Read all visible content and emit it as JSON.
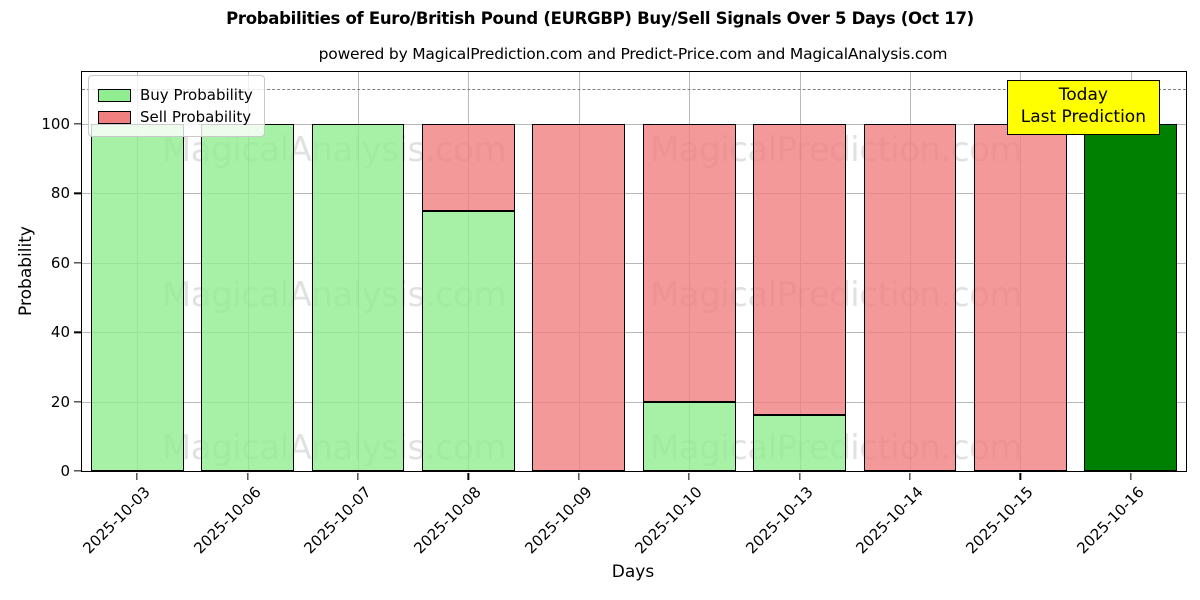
{
  "figure": {
    "title": "Probabilities of Euro/British Pound (EURGBP) Buy/Sell Signals Over 5 Days (Oct 17)",
    "subtitle": "powered by MagicalPrediction.com and Predict-Price.com and MagicalAnalysis.com"
  },
  "chart_data": {
    "type": "bar",
    "stacked": true,
    "title": "Probabilities of Euro/British Pound (EURGBP) Buy/Sell Signals Over 5 Days (Oct 17)",
    "subtitle": "powered by MagicalPrediction.com and Predict-Price.com and MagicalAnalysis.com",
    "xlabel": "Days",
    "ylabel": "Probability",
    "ylim": [
      0,
      115
    ],
    "yticks": [
      0,
      20,
      40,
      60,
      80,
      100
    ],
    "grid": true,
    "dashed_guide_y": 110,
    "categories": [
      "2025-10-03",
      "2025-10-06",
      "2025-10-07",
      "2025-10-08",
      "2025-10-09",
      "2025-10-10",
      "2025-10-13",
      "2025-10-14",
      "2025-10-15",
      "2025-10-16"
    ],
    "series": [
      {
        "name": "Buy Probability",
        "color": "#90EE90",
        "values": [
          100,
          100,
          100,
          75,
          0,
          20,
          16,
          0,
          0,
          0
        ]
      },
      {
        "name": "Sell Probability",
        "color": "#F08080",
        "values": [
          0,
          0,
          0,
          25,
          100,
          80,
          84,
          100,
          100,
          0
        ]
      }
    ],
    "today_bar": {
      "category": "2025-10-16",
      "value": 100,
      "color": "#008000"
    },
    "legend": {
      "position": "upper left",
      "entries": [
        "Buy Probability",
        "Sell Probability"
      ]
    },
    "annotation_box": {
      "lines": [
        "Today",
        "Last Prediction"
      ],
      "bg_color": "#FFFF00",
      "border_color": "#000000"
    },
    "watermarks": {
      "left": "MagicalAnalysis.com",
      "right": "MagicalPrediction.com",
      "rows": 3
    },
    "bar_edge_color": "#000000",
    "grid_color": "#b9b9b9"
  }
}
